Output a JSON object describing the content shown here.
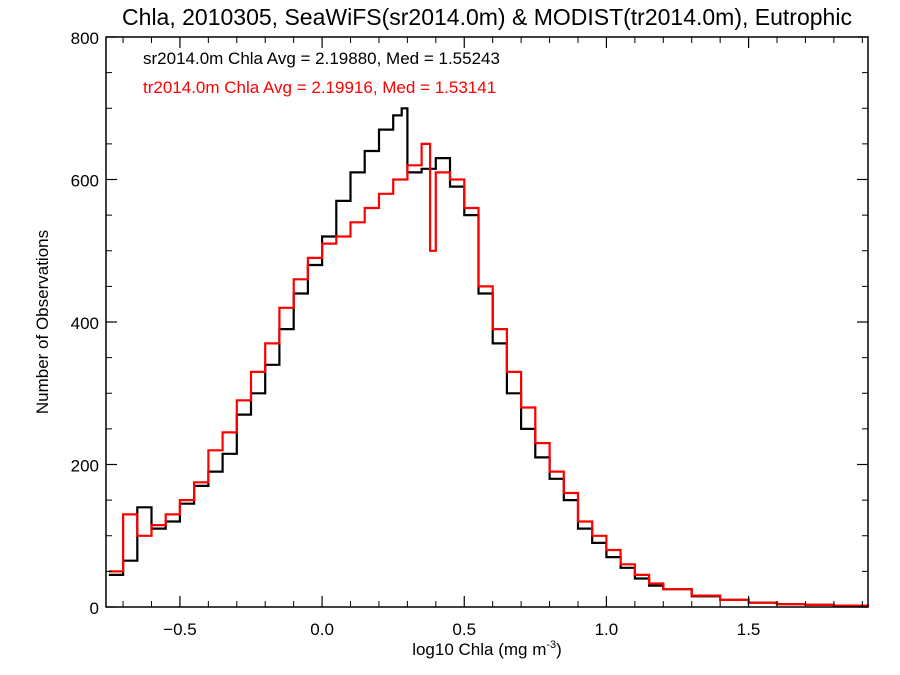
{
  "chart_data": {
    "type": "line",
    "title": "Chla, 2010305, SeaWiFS(sr2014.0m) & MODIST(tr2014.0m), Eutrophic",
    "xlabel": "log10 Chla (mg m",
    "xlabel_exp": "-3",
    "xlabel_close": ")",
    "ylabel": "Number of Observations",
    "xlim": [
      -0.76,
      1.92
    ],
    "ylim": [
      0,
      800
    ],
    "xticks": [
      -0.5,
      0.0,
      0.5,
      1.0,
      1.5
    ],
    "xtick_labels": [
      "−0.5",
      "0.0",
      "0.5",
      "1.0",
      "1.5"
    ],
    "yticks": [
      0,
      200,
      400,
      600,
      800
    ],
    "ytick_labels": [
      "0",
      "200",
      "400",
      "600",
      "800"
    ],
    "grid": false,
    "legend_position": "top-left",
    "annotations": [
      {
        "text": "sr2014.0m Chla Avg = 2.19880, Med = 1.55243",
        "color": "#000000"
      },
      {
        "text": "tr2014.0m Chla Avg = 2.19916, Med = 1.53141",
        "color": "#ff0000"
      }
    ],
    "series": [
      {
        "color": "#000000",
        "x": [
          -0.75,
          -0.7,
          -0.65,
          -0.6,
          -0.55,
          -0.5,
          -0.45,
          -0.4,
          -0.35,
          -0.3,
          -0.25,
          -0.2,
          -0.15,
          -0.1,
          -0.05,
          0.0,
          0.05,
          0.1,
          0.15,
          0.2,
          0.25,
          0.28,
          0.3,
          0.35,
          0.4,
          0.45,
          0.5,
          0.55,
          0.6,
          0.65,
          0.7,
          0.75,
          0.8,
          0.85,
          0.9,
          0.95,
          1.0,
          1.05,
          1.1,
          1.15,
          1.2,
          1.3,
          1.4,
          1.5,
          1.6,
          1.7,
          1.8,
          1.92
        ],
        "y": [
          45,
          65,
          140,
          110,
          120,
          145,
          170,
          190,
          215,
          270,
          300,
          340,
          390,
          440,
          480,
          520,
          570,
          610,
          640,
          670,
          690,
          700,
          610,
          615,
          630,
          590,
          550,
          440,
          370,
          300,
          250,
          210,
          180,
          150,
          110,
          90,
          70,
          55,
          40,
          30,
          25,
          15,
          10,
          6,
          4,
          3,
          2,
          1
        ]
      },
      {
        "color": "#ff0000",
        "x": [
          -0.75,
          -0.7,
          -0.65,
          -0.6,
          -0.55,
          -0.5,
          -0.45,
          -0.4,
          -0.35,
          -0.3,
          -0.25,
          -0.2,
          -0.15,
          -0.1,
          -0.05,
          0.0,
          0.05,
          0.1,
          0.15,
          0.2,
          0.25,
          0.3,
          0.35,
          0.38,
          0.4,
          0.45,
          0.5,
          0.55,
          0.6,
          0.65,
          0.7,
          0.75,
          0.8,
          0.85,
          0.9,
          0.95,
          1.0,
          1.05,
          1.1,
          1.15,
          1.2,
          1.3,
          1.4,
          1.5,
          1.6,
          1.7,
          1.8,
          1.92
        ],
        "y": [
          50,
          130,
          100,
          115,
          130,
          150,
          175,
          220,
          245,
          290,
          330,
          370,
          420,
          460,
          490,
          510,
          520,
          540,
          560,
          580,
          600,
          620,
          650,
          500,
          610,
          600,
          560,
          450,
          390,
          330,
          280,
          230,
          190,
          160,
          120,
          100,
          80,
          60,
          45,
          33,
          25,
          16,
          10,
          6,
          4,
          3,
          2,
          1
        ]
      }
    ]
  }
}
